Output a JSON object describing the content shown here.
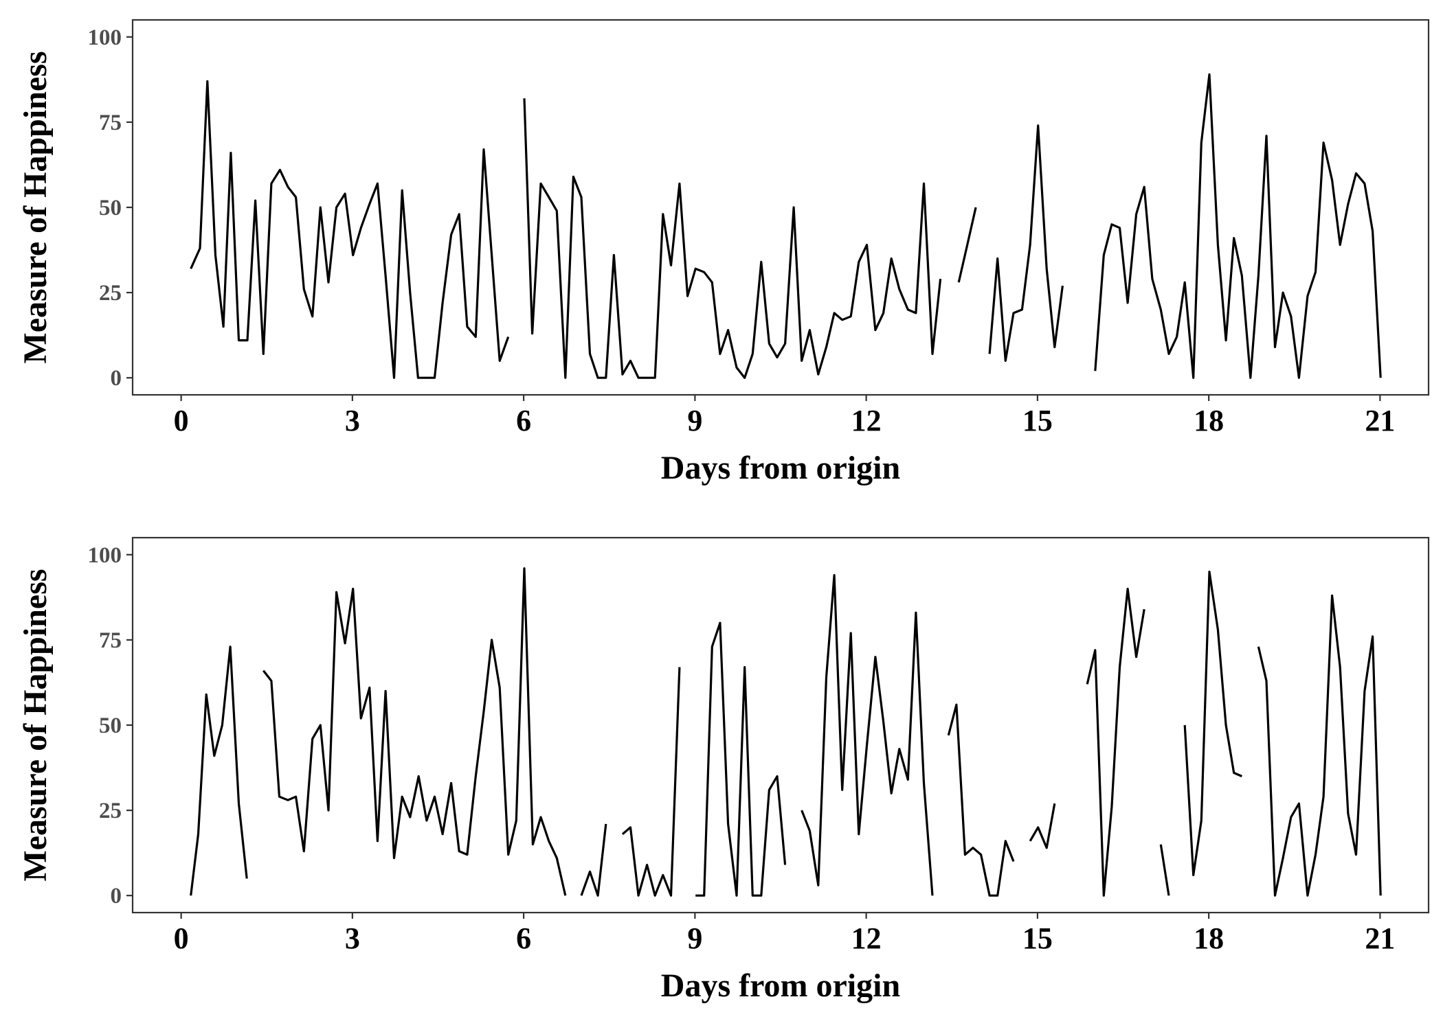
{
  "colors": {
    "line": "#000000",
    "frame": "#333333",
    "ytick_text": "#4d4d4d",
    "xtick_text": "#000000"
  },
  "chart_data": [
    {
      "type": "line",
      "xlabel": "Days from origin",
      "ylabel": "Measure of Happiness",
      "xlim": [
        -0.85,
        21.85
      ],
      "ylim": [
        -5,
        105
      ],
      "xticks": [
        0,
        3,
        6,
        9,
        12,
        15,
        18,
        21
      ],
      "yticks": [
        0,
        25,
        50,
        75,
        100
      ],
      "grid": false,
      "segments": [
        [
          [
            0.17,
            32
          ],
          [
            0.33,
            38
          ],
          [
            0.46,
            87
          ],
          [
            0.6,
            36
          ],
          [
            0.74,
            15
          ],
          [
            0.87,
            66
          ],
          [
            1.01,
            11
          ],
          [
            1.16,
            11
          ],
          [
            1.3,
            52
          ],
          [
            1.44,
            7
          ],
          [
            1.58,
            57
          ],
          [
            1.73,
            61
          ],
          [
            1.87,
            56
          ],
          [
            2.01,
            53
          ],
          [
            2.15,
            26
          ],
          [
            2.3,
            18
          ],
          [
            2.44,
            50
          ],
          [
            2.58,
            28
          ],
          [
            2.72,
            50
          ],
          [
            2.87,
            54
          ],
          [
            3.01,
            36
          ],
          [
            3.15,
            44
          ],
          [
            3.3,
            51
          ],
          [
            3.44,
            57
          ],
          [
            3.58,
            30
          ],
          [
            3.73,
            0
          ],
          [
            3.87,
            55
          ],
          [
            4.01,
            25
          ],
          [
            4.15,
            0
          ],
          [
            4.3,
            0
          ],
          [
            4.44,
            0
          ],
          [
            4.58,
            22
          ],
          [
            4.73,
            42
          ],
          [
            4.87,
            48
          ],
          [
            5.01,
            15
          ],
          [
            5.16,
            12
          ],
          [
            5.3,
            67
          ],
          [
            5.44,
            36
          ],
          [
            5.58,
            5
          ],
          [
            5.73,
            12
          ]
        ],
        [
          [
            6.01,
            82
          ],
          [
            6.15,
            13
          ],
          [
            6.3,
            57
          ],
          [
            6.44,
            53
          ],
          [
            6.58,
            49
          ],
          [
            6.73,
            0
          ],
          [
            6.87,
            59
          ],
          [
            7.01,
            53
          ],
          [
            7.16,
            7
          ],
          [
            7.3,
            0
          ],
          [
            7.44,
            0
          ],
          [
            7.58,
            36
          ],
          [
            7.73,
            1
          ],
          [
            7.87,
            5
          ],
          [
            8.01,
            0
          ],
          [
            8.16,
            0
          ],
          [
            8.3,
            0
          ],
          [
            8.44,
            48
          ],
          [
            8.58,
            33
          ],
          [
            8.73,
            57
          ],
          [
            8.87,
            24
          ],
          [
            9.01,
            32
          ],
          [
            9.16,
            31
          ],
          [
            9.3,
            28
          ],
          [
            9.44,
            7
          ],
          [
            9.58,
            14
          ],
          [
            9.73,
            3
          ],
          [
            9.87,
            0
          ],
          [
            10.01,
            7
          ],
          [
            10.16,
            34
          ],
          [
            10.3,
            10
          ],
          [
            10.44,
            6
          ],
          [
            10.58,
            10
          ],
          [
            10.73,
            50
          ],
          [
            10.87,
            5
          ],
          [
            11.01,
            14
          ],
          [
            11.16,
            1
          ],
          [
            11.3,
            9
          ],
          [
            11.44,
            19
          ],
          [
            11.58,
            17
          ],
          [
            11.73,
            18
          ],
          [
            11.87,
            34
          ],
          [
            12.01,
            39
          ],
          [
            12.16,
            14
          ],
          [
            12.3,
            19
          ],
          [
            12.44,
            35
          ],
          [
            12.58,
            26
          ],
          [
            12.73,
            20
          ],
          [
            12.87,
            19
          ],
          [
            13.01,
            57
          ],
          [
            13.16,
            7
          ],
          [
            13.3,
            29
          ]
        ],
        [
          [
            13.62,
            28
          ],
          [
            13.77,
            39
          ],
          [
            13.92,
            50
          ]
        ],
        [
          [
            14.16,
            7
          ],
          [
            14.3,
            35
          ],
          [
            14.44,
            5
          ],
          [
            14.58,
            19
          ],
          [
            14.73,
            20
          ],
          [
            14.87,
            39
          ],
          [
            15.01,
            74
          ],
          [
            15.16,
            32
          ],
          [
            15.3,
            9
          ],
          [
            15.44,
            27
          ]
        ],
        [
          [
            16.01,
            2
          ],
          [
            16.16,
            36
          ],
          [
            16.3,
            45
          ],
          [
            16.44,
            44
          ],
          [
            16.58,
            22
          ],
          [
            16.73,
            48
          ],
          [
            16.87,
            56
          ],
          [
            17.01,
            29
          ],
          [
            17.16,
            20
          ],
          [
            17.3,
            7
          ],
          [
            17.44,
            12
          ],
          [
            17.58,
            28
          ],
          [
            17.73,
            0
          ],
          [
            17.87,
            69
          ],
          [
            18.01,
            89
          ],
          [
            18.16,
            39
          ],
          [
            18.3,
            11
          ],
          [
            18.44,
            41
          ],
          [
            18.58,
            30
          ],
          [
            18.73,
            0
          ],
          [
            18.87,
            30
          ],
          [
            19.01,
            71
          ],
          [
            19.16,
            9
          ],
          [
            19.3,
            25
          ],
          [
            19.44,
            18
          ],
          [
            19.58,
            0
          ],
          [
            19.73,
            24
          ],
          [
            19.87,
            31
          ],
          [
            20.01,
            69
          ],
          [
            20.16,
            58
          ],
          [
            20.3,
            39
          ],
          [
            20.44,
            51
          ],
          [
            20.58,
            60
          ],
          [
            20.73,
            57
          ],
          [
            20.87,
            43
          ],
          [
            21.01,
            0
          ]
        ]
      ]
    },
    {
      "type": "line",
      "xlabel": "Days from origin",
      "ylabel": "Measure of Happiness",
      "xlim": [
        -0.85,
        21.85
      ],
      "ylim": [
        -5,
        105
      ],
      "xticks": [
        0,
        3,
        6,
        9,
        12,
        15,
        18,
        21
      ],
      "yticks": [
        0,
        25,
        50,
        75,
        100
      ],
      "grid": false,
      "segments": [
        [
          [
            0.17,
            0
          ],
          [
            0.3,
            18
          ],
          [
            0.44,
            59
          ],
          [
            0.58,
            41
          ],
          [
            0.72,
            50
          ],
          [
            0.86,
            73
          ],
          [
            1.01,
            27
          ],
          [
            1.15,
            5
          ]
        ],
        [
          [
            1.44,
            66
          ],
          [
            1.58,
            63
          ],
          [
            1.72,
            29
          ],
          [
            1.87,
            28
          ],
          [
            2.01,
            29
          ],
          [
            2.15,
            13
          ],
          [
            2.3,
            46
          ],
          [
            2.44,
            50
          ],
          [
            2.58,
            25
          ],
          [
            2.72,
            89
          ],
          [
            2.87,
            74
          ],
          [
            3.01,
            90
          ],
          [
            3.15,
            52
          ],
          [
            3.3,
            61
          ],
          [
            3.44,
            16
          ],
          [
            3.58,
            60
          ],
          [
            3.73,
            11
          ],
          [
            3.87,
            29
          ],
          [
            4.01,
            23
          ],
          [
            4.16,
            35
          ],
          [
            4.3,
            22
          ],
          [
            4.44,
            29
          ],
          [
            4.58,
            18
          ],
          [
            4.73,
            33
          ],
          [
            4.87,
            13
          ],
          [
            5.01,
            12
          ],
          [
            5.16,
            35
          ],
          [
            5.3,
            54
          ],
          [
            5.44,
            75
          ],
          [
            5.58,
            61
          ],
          [
            5.73,
            12
          ],
          [
            5.87,
            22
          ],
          [
            6.01,
            96
          ],
          [
            6.16,
            15
          ],
          [
            6.3,
            23
          ],
          [
            6.44,
            16
          ],
          [
            6.58,
            11
          ],
          [
            6.73,
            0
          ]
        ],
        [
          [
            7.01,
            0
          ],
          [
            7.16,
            7
          ],
          [
            7.3,
            0
          ],
          [
            7.44,
            21
          ]
        ],
        [
          [
            7.73,
            18
          ],
          [
            7.87,
            20
          ],
          [
            8.01,
            0
          ],
          [
            8.16,
            9
          ],
          [
            8.3,
            0
          ],
          [
            8.44,
            6
          ],
          [
            8.58,
            0
          ],
          [
            8.73,
            67
          ]
        ],
        [
          [
            9.01,
            0
          ],
          [
            9.16,
            0
          ],
          [
            9.3,
            73
          ],
          [
            9.44,
            80
          ],
          [
            9.58,
            21
          ],
          [
            9.73,
            0
          ],
          [
            9.87,
            67
          ],
          [
            10.01,
            0
          ],
          [
            10.16,
            0
          ],
          [
            10.3,
            31
          ],
          [
            10.44,
            35
          ],
          [
            10.58,
            9
          ]
        ],
        [
          [
            10.87,
            25
          ],
          [
            11.01,
            19
          ],
          [
            11.16,
            3
          ],
          [
            11.3,
            64
          ],
          [
            11.44,
            94
          ],
          [
            11.58,
            31
          ],
          [
            11.73,
            77
          ],
          [
            11.87,
            18
          ],
          [
            12.01,
            44
          ],
          [
            12.16,
            70
          ],
          [
            12.3,
            51
          ],
          [
            12.44,
            30
          ],
          [
            12.58,
            43
          ],
          [
            12.73,
            34
          ],
          [
            12.87,
            83
          ],
          [
            13.01,
            33
          ],
          [
            13.16,
            0
          ]
        ],
        [
          [
            13.44,
            47
          ],
          [
            13.58,
            56
          ],
          [
            13.73,
            12
          ],
          [
            13.87,
            14
          ],
          [
            14.01,
            12
          ],
          [
            14.16,
            0
          ],
          [
            14.3,
            0
          ],
          [
            14.44,
            16
          ],
          [
            14.58,
            10
          ]
        ],
        [
          [
            14.87,
            16
          ],
          [
            15.01,
            20
          ],
          [
            15.16,
            14
          ],
          [
            15.3,
            27
          ]
        ],
        [
          [
            15.87,
            62
          ],
          [
            16.01,
            72
          ],
          [
            16.16,
            0
          ],
          [
            16.3,
            26
          ],
          [
            16.44,
            67
          ],
          [
            16.58,
            90
          ],
          [
            16.73,
            70
          ],
          [
            16.87,
            84
          ]
        ],
        [
          [
            17.16,
            15
          ],
          [
            17.3,
            0
          ]
        ],
        [
          [
            17.58,
            50
          ],
          [
            17.73,
            6
          ],
          [
            17.87,
            22
          ],
          [
            18.01,
            95
          ],
          [
            18.16,
            78
          ],
          [
            18.3,
            50
          ],
          [
            18.44,
            36
          ],
          [
            18.58,
            35
          ]
        ],
        [
          [
            18.87,
            73
          ],
          [
            19.01,
            63
          ],
          [
            19.16,
            0
          ],
          [
            19.3,
            11
          ],
          [
            19.44,
            23
          ],
          [
            19.58,
            27
          ],
          [
            19.73,
            0
          ],
          [
            19.87,
            12
          ],
          [
            20.01,
            29
          ],
          [
            20.16,
            88
          ],
          [
            20.3,
            67
          ],
          [
            20.44,
            24
          ],
          [
            20.58,
            12
          ],
          [
            20.73,
            60
          ],
          [
            20.87,
            76
          ],
          [
            21.01,
            0
          ]
        ]
      ]
    }
  ]
}
